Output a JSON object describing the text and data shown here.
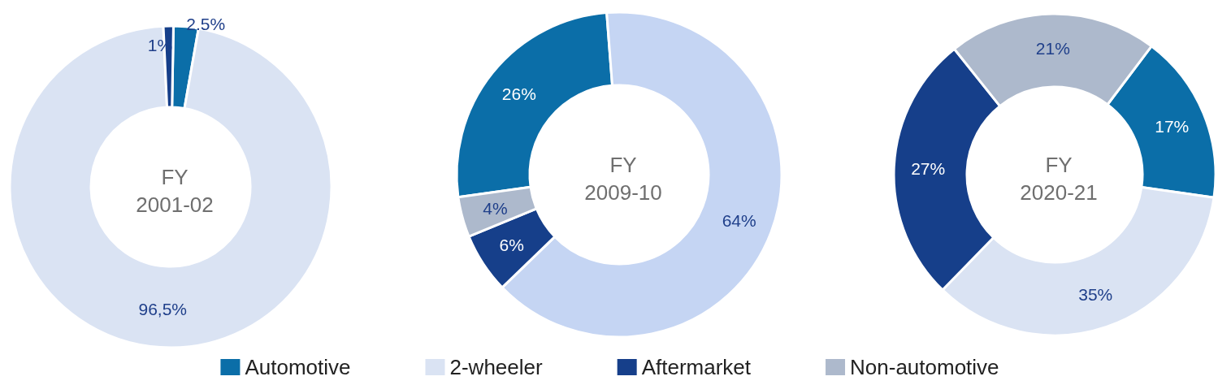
{
  "chart_data": {
    "type": "donut",
    "categories": [
      "Automotive",
      "2-wheeler",
      "Aftermarket",
      "Non-automotive"
    ],
    "legend": "bottom",
    "series": [
      {
        "name": "FY\n2001-02",
        "values": [
          2.5,
          96.5,
          1,
          null
        ],
        "colors": [
          "#0b6ea8",
          "#dae3f3",
          "#163f8a",
          null
        ],
        "value_labels": [
          "2.5%",
          "96,5%",
          "1%",
          null
        ]
      },
      {
        "name": "FY\n2009-10",
        "values": [
          26,
          64,
          6,
          4
        ],
        "colors": [
          "#0b6ea8",
          "#c5d5f3",
          "#163f8a",
          "#adb9cc"
        ],
        "value_labels": [
          "26%",
          "64%",
          "6%",
          "4%"
        ]
      },
      {
        "name": "FY\n2020-21",
        "values": [
          17,
          35,
          27,
          21
        ],
        "colors": [
          "#0b6ea8",
          "#dae3f3",
          "#163f8a",
          "#adb9cc"
        ],
        "value_labels": [
          "17%",
          "35%",
          "27%",
          "21%"
        ]
      }
    ]
  }
}
